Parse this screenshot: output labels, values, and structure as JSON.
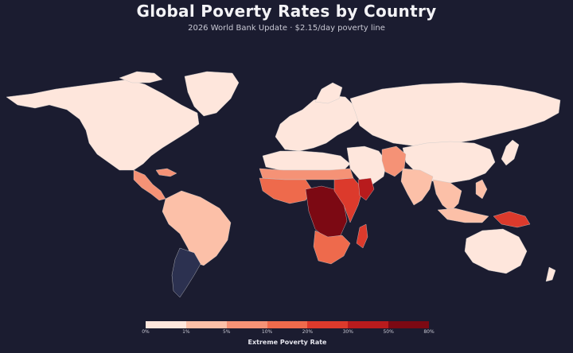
{
  "title": "Global Poverty Rates by Country",
  "subtitle": "2026 World Bank Update · $2.15/day poverty line",
  "legend": {
    "title": "Extreme Poverty Rate",
    "ticks": [
      "0%",
      "1%",
      "5%",
      "10%",
      "20%",
      "30%",
      "50%",
      "80%"
    ],
    "colors": [
      "#fee6dc",
      "#fcc0a8",
      "#f59276",
      "#ee6a4c",
      "#dc3a2c",
      "#b81b1d",
      "#7c0913"
    ]
  },
  "colors": {
    "background": "#1b1c30",
    "no_data": "#2c3150",
    "borders": "#c8c8c8"
  },
  "regions": [
    {
      "name": "north-america",
      "bin": 0
    },
    {
      "name": "greenland",
      "bin": 0
    },
    {
      "name": "central-america",
      "bin": 2
    },
    {
      "name": "south-america",
      "bin": 1
    },
    {
      "name": "argentina",
      "bin": -1
    },
    {
      "name": "europe",
      "bin": 0
    },
    {
      "name": "russia",
      "bin": 0
    },
    {
      "name": "north-africa",
      "bin": 0
    },
    {
      "name": "sahel",
      "bin": 2
    },
    {
      "name": "west-africa",
      "bin": 3
    },
    {
      "name": "central-africa",
      "bin": 6
    },
    {
      "name": "east-africa",
      "bin": 4
    },
    {
      "name": "horn-of-africa",
      "bin": 5
    },
    {
      "name": "southern-africa",
      "bin": 3
    },
    {
      "name": "madagascar",
      "bin": 4
    },
    {
      "name": "middle-east",
      "bin": 0
    },
    {
      "name": "pakistan-afghanistan",
      "bin": 2
    },
    {
      "name": "india",
      "bin": 1
    },
    {
      "name": "china",
      "bin": 0
    },
    {
      "name": "southeast-asia",
      "bin": 1
    },
    {
      "name": "indonesia",
      "bin": 1
    },
    {
      "name": "papua-new-guinea",
      "bin": 4
    },
    {
      "name": "japan",
      "bin": 0
    },
    {
      "name": "australia",
      "bin": 0
    },
    {
      "name": "new-zealand",
      "bin": 0
    }
  ]
}
